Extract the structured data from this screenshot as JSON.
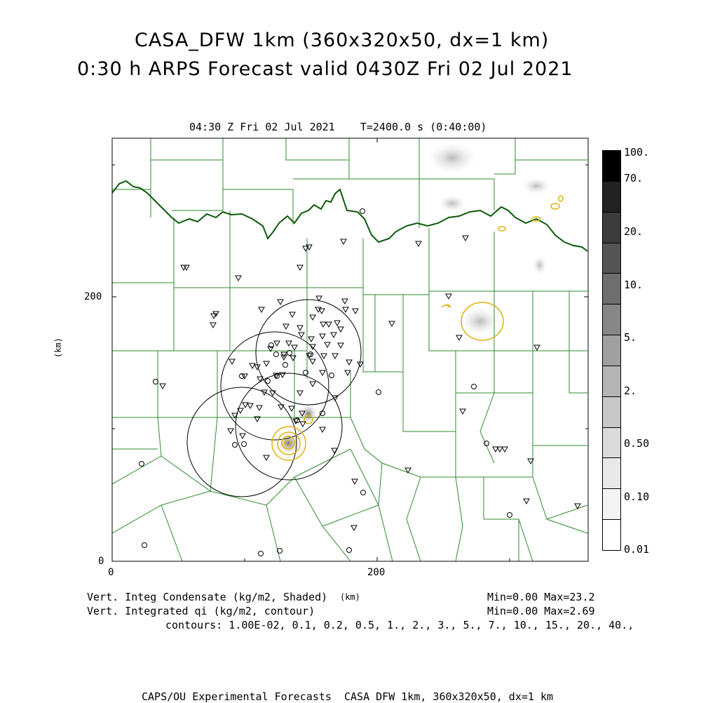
{
  "title": {
    "line1": "CASA_DFW 1km (360x320x50, dx=1 km)",
    "line2": "0:30 h ARPS Forecast valid 0430Z Fri 02 Jul 2021"
  },
  "subtitle": "04:30 Z Fri 02 Jul 2021    T=2400.0 s (0:40:00)",
  "axes": {
    "x_ticks": [
      "0",
      "200"
    ],
    "y_ticks": [
      "0",
      "200"
    ],
    "y_label": "(km)",
    "x_label": "(km)"
  },
  "colorbar": {
    "labels": [
      "100.",
      "70.",
      "20.",
      "10.",
      "5.",
      "2.",
      "0.50",
      "0.10",
      "0.01"
    ],
    "colors": [
      "#000000",
      "#222222",
      "#3c3c3c",
      "#555555",
      "#6e6e6e",
      "#878787",
      "#a0a0a0",
      "#b4b4b4",
      "#c8c8c8",
      "#dadada",
      "#e8e8e8",
      "#f3f3f3",
      "#ffffff"
    ]
  },
  "footer": {
    "line1_left": "Vert. Integ Condensate (kg/m2, Shaded)",
    "line1_right": "Min=0.00 Max=23.2",
    "line2_left": "Vert. Integrated qi (kg/m2, contour)",
    "line2_right": "Min=0.00 Max=2.69",
    "line3": "contours: 1.00E-02, 0.1, 0.2, 0.5, 1., 2., 3., 5., 7., 10., 15., 20., 40.,",
    "credit": "CAPS/OU Experimental Forecasts  CASA DFW 1km, 360x320x50, dx=1 km"
  },
  "colors": {
    "county_lines": "#2e8b2e",
    "state_border": "#0b5a0b",
    "contour": "#e0b010"
  }
}
